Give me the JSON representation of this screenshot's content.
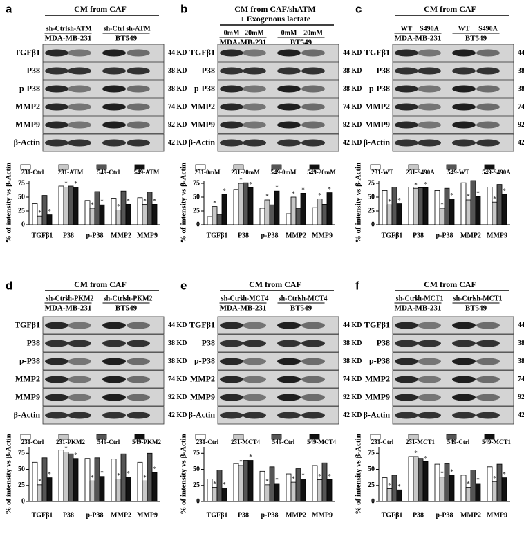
{
  "bands": [
    "TGFβ1",
    "P38",
    "p-P38",
    "MMP2",
    "MMP9",
    "β-Actin"
  ],
  "band_sizes": [
    "44 KD",
    "38 KD",
    "38 KD",
    "74 KD",
    "92 KD",
    "42 KD"
  ],
  "panels": [
    {
      "letter": "a",
      "header": [
        "CM from CAF"
      ],
      "lanes": [
        "sh-Ctrl",
        "sh-ATM",
        "sh-Ctrl",
        "sh-ATM"
      ],
      "cell_lines": [
        "MDA-MB-231",
        "BT549"
      ]
    },
    {
      "letter": "b",
      "header": [
        "CM from CAF/shATM",
        "+ Exogenous lactate"
      ],
      "lanes": [
        "0mM",
        "20mM",
        "0mM",
        "20mM"
      ],
      "cell_lines": [
        "MDA-MB-231",
        "BT549"
      ]
    },
    {
      "letter": "c",
      "header": [
        "CM from CAF"
      ],
      "lanes": [
        "WT",
        "S490A",
        "WT",
        "S490A"
      ],
      "cell_lines": [
        "MDA-MB-231",
        "BT549"
      ]
    },
    {
      "letter": "d",
      "header": [
        "CM from CAF"
      ],
      "lanes": [
        "sh-Ctrl",
        "sh-PKM2",
        "sh-Ctrl",
        "sh-PKM2"
      ],
      "cell_lines": [
        "MDA-MB-231",
        "BT549"
      ]
    },
    {
      "letter": "e",
      "header": [
        "CM from CAF"
      ],
      "lanes": [
        "sh-Ctrl",
        "sh-MCT4",
        "sh-Ctrl",
        "sh-MCT4"
      ],
      "cell_lines": [
        "MDA-MB-231",
        "BT549"
      ]
    },
    {
      "letter": "f",
      "header": [
        "CM from CAF"
      ],
      "lanes": [
        "sh-Ctrl",
        "sh-MCT1",
        "sh-Ctrl",
        "sh-MCT1"
      ],
      "cell_lines": [
        "MDA-MB-231",
        "BT549"
      ]
    }
  ],
  "chart_data": [
    {
      "type": "bar",
      "y_label": "% of intensity vs β-Actin",
      "categories": [
        "TGFβ1",
        "P38",
        "p-P38",
        "MMP2",
        "MMP9"
      ],
      "ylim": [
        0,
        80
      ],
      "yticks": [
        0,
        25,
        50,
        75
      ],
      "series": [
        {
          "name": "231-Ctrl",
          "color": "#ffffff",
          "values": [
            38,
            70,
            44,
            48,
            49
          ]
        },
        {
          "name": "231-ATM",
          "color": "#c8c8c8",
          "values": [
            16,
            68,
            30,
            27,
            37
          ],
          "annotation": "*"
        },
        {
          "name": "549-Ctrl",
          "color": "#555555",
          "values": [
            53,
            70,
            60,
            61,
            59
          ]
        },
        {
          "name": "549-ATM",
          "color": "#111111",
          "values": [
            18,
            68,
            36,
            37,
            37
          ],
          "annotation": "*"
        }
      ]
    },
    {
      "type": "bar",
      "y_label": "% of intensity vs β-Actin",
      "categories": [
        "TGFβ1",
        "P38",
        "p-P38",
        "MMP2",
        "MMP9"
      ],
      "ylim": [
        0,
        80
      ],
      "yticks": [
        0,
        25,
        50,
        75
      ],
      "series": [
        {
          "name": "231-0mM",
          "color": "#ffffff",
          "values": [
            15,
            64,
            30,
            20,
            31
          ]
        },
        {
          "name": "231-20mM",
          "color": "#c8c8c8",
          "values": [
            33,
            75,
            45,
            50,
            47
          ],
          "annotation": "*"
        },
        {
          "name": "549-0mM",
          "color": "#555555",
          "values": [
            18,
            76,
            36,
            30,
            37
          ]
        },
        {
          "name": "549-20mM",
          "color": "#111111",
          "values": [
            55,
            67,
            61,
            57,
            58
          ],
          "annotation": "*"
        }
      ]
    },
    {
      "type": "bar",
      "y_label": "% of intensity vs β-Actin",
      "categories": [
        "TGFβ1",
        "P38",
        "p-P38",
        "MMP2",
        "MMP9"
      ],
      "ylim": [
        0,
        80
      ],
      "yticks": [
        0,
        25,
        50,
        75
      ],
      "series": [
        {
          "name": "231-WT",
          "color": "#ffffff",
          "values": [
            62,
            68,
            62,
            76,
            68
          ]
        },
        {
          "name": "231-S490A",
          "color": "#c8c8c8",
          "values": [
            36,
            66,
            30,
            45,
            41
          ],
          "annotation": "*"
        },
        {
          "name": "549-WT",
          "color": "#555555",
          "values": [
            68,
            67,
            66,
            80,
            73
          ]
        },
        {
          "name": "549-S490A",
          "color": "#111111",
          "values": [
            38,
            67,
            47,
            51,
            55
          ],
          "annotation": "*"
        }
      ]
    },
    {
      "type": "bar",
      "y_label": "% of intensity vs β-Actin",
      "categories": [
        "TGFβ1",
        "P38",
        "p-P38",
        "MMP2",
        "MMP9"
      ],
      "ylim": [
        0,
        85
      ],
      "yticks": [
        0,
        25,
        50,
        75
      ],
      "series": [
        {
          "name": "231-Ctrl",
          "color": "#ffffff",
          "values": [
            61,
            80,
            67,
            66,
            61
          ]
        },
        {
          "name": "231-PKM2",
          "color": "#c8c8c8",
          "values": [
            26,
            77,
            32,
            35,
            32
          ],
          "annotation": "*"
        },
        {
          "name": "549-Ctrl",
          "color": "#555555",
          "values": [
            68,
            74,
            68,
            74,
            75
          ]
        },
        {
          "name": "549-PKM2",
          "color": "#111111",
          "values": [
            37,
            67,
            39,
            38,
            45
          ],
          "annotation": "*"
        }
      ]
    },
    {
      "type": "bar",
      "y_label": "% of intensity vs β-Actin",
      "categories": [
        "TGFβ1",
        "P38",
        "p-P38",
        "MMP2",
        "MMP9"
      ],
      "ylim": [
        0,
        85
      ],
      "yticks": [
        0,
        25,
        50,
        75
      ],
      "series": [
        {
          "name": "231-Ctrl",
          "color": "#ffffff",
          "values": [
            35,
            59,
            47,
            43,
            56
          ]
        },
        {
          "name": "231-MCT4",
          "color": "#c8c8c8",
          "values": [
            22,
            56,
            26,
            30,
            34
          ],
          "annotation": "*"
        },
        {
          "name": "549-Ctrl",
          "color": "#555555",
          "values": [
            49,
            64,
            54,
            51,
            60
          ]
        },
        {
          "name": "549-MCT4",
          "color": "#111111",
          "values": [
            21,
            64,
            28,
            35,
            34
          ],
          "annotation": "*"
        }
      ]
    },
    {
      "type": "bar",
      "y_label": "% of intensity vs β-Actin",
      "categories": [
        "TGFβ1",
        "P38",
        "p-P38",
        "MMP2",
        "MMP9"
      ],
      "ylim": [
        0,
        85
      ],
      "yticks": [
        0,
        25,
        50,
        75
      ],
      "series": [
        {
          "name": "231-Ctrl",
          "color": "#ffffff",
          "values": [
            37,
            70,
            58,
            41,
            54
          ]
        },
        {
          "name": "231-MCT1",
          "color": "#c8c8c8",
          "values": [
            20,
            70,
            38,
            22,
            31
          ],
          "annotation": "*"
        },
        {
          "name": "549-Ctrl",
          "color": "#555555",
          "values": [
            41,
            67,
            59,
            49,
            58
          ]
        },
        {
          "name": "549-MCT1",
          "color": "#111111",
          "values": [
            18,
            62,
            41,
            28,
            37
          ],
          "annotation": "*"
        }
      ]
    }
  ]
}
